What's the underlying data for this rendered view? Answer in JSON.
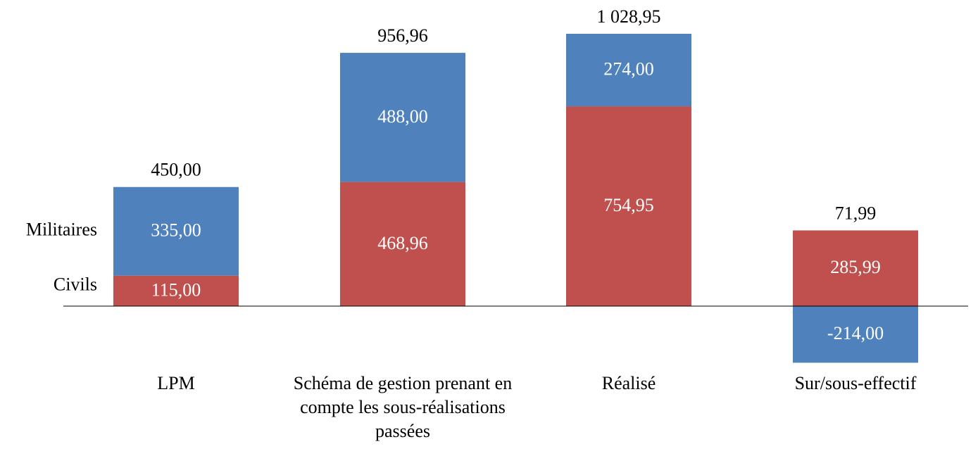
{
  "chart_data": {
    "type": "bar",
    "stacked": true,
    "categories": [
      "LPM",
      "Schéma de gestion prenant en compte les sous-réalisations passées",
      "Réalisé",
      "Sur/sous-effectif"
    ],
    "series": [
      {
        "name": "Civils",
        "color": "#c0504d",
        "values": [
          115,
          468.96,
          754.95,
          285.99
        ],
        "value_labels": [
          "115,00",
          "468,96",
          "754,95",
          "285,99"
        ]
      },
      {
        "name": "Militaires",
        "color": "#4f81bd",
        "values": [
          335,
          488,
          274,
          -214
        ],
        "value_labels": [
          "335,00",
          "488,00",
          "274,00",
          "-214,00"
        ]
      }
    ],
    "totals": {
      "values": [
        450,
        956.96,
        1028.95,
        71.99
      ],
      "value_labels": [
        "450,00",
        "956,96",
        "1 028,95",
        "71,99"
      ]
    },
    "ylim": [
      -300,
      1100
    ]
  }
}
